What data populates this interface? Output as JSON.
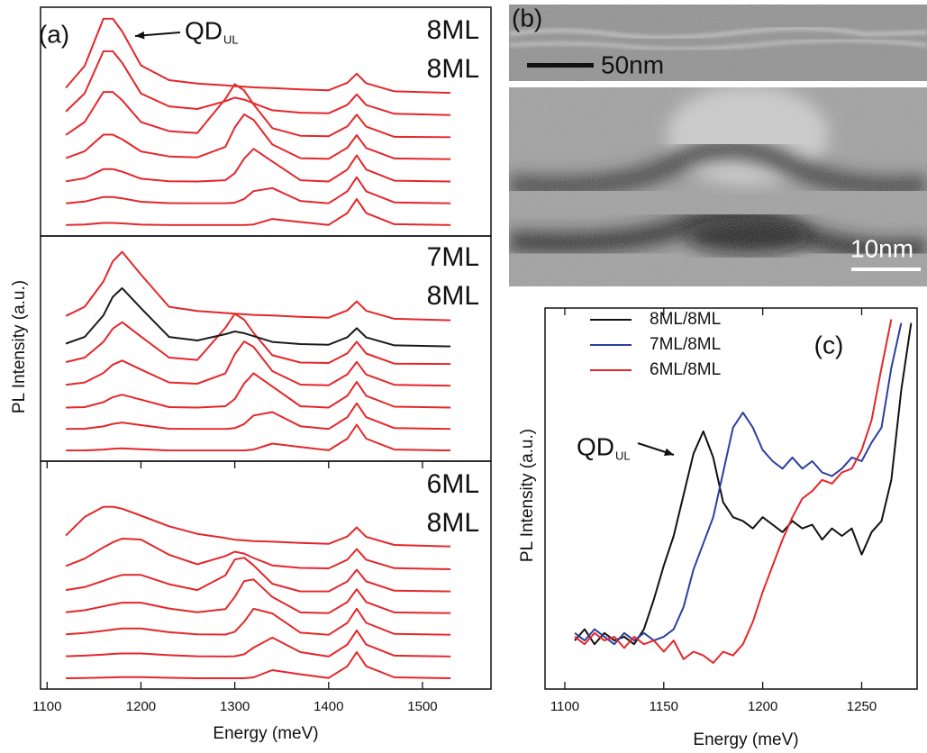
{
  "chart_data": [
    {
      "type": "line",
      "panel_label": "(a)",
      "labels": [
        "8ML",
        "8ML"
      ],
      "annotation": {
        "text": "QD",
        "subscript": "UL"
      },
      "xlim": [
        1093,
        1573
      ],
      "ylim": [
        0,
        10.5
      ],
      "x": [
        1120,
        1140,
        1160,
        1170,
        1180,
        1200,
        1230,
        1260,
        1290,
        1300,
        1310,
        1320,
        1340,
        1370,
        1400,
        1420,
        1430,
        1440,
        1470,
        1530
      ],
      "series": [
        {
          "color": "#e5262a",
          "values": [
            0.5,
            0.53,
            0.6,
            0.6,
            0.58,
            0.52,
            0.5,
            0.5,
            0.5,
            0.5,
            0.5,
            0.53,
            0.78,
            0.64,
            0.51,
            1.05,
            1.7,
            1.05,
            0.54,
            0.5
          ]
        },
        {
          "color": "#e5262a",
          "values": [
            1.5,
            1.58,
            1.79,
            1.79,
            1.73,
            1.57,
            1.51,
            1.5,
            1.5,
            1.53,
            1.7,
            2.06,
            2.2,
            1.61,
            1.5,
            2.05,
            2.7,
            2.05,
            1.54,
            1.5
          ]
        },
        {
          "color": "#e5262a",
          "values": [
            2.51,
            2.65,
            3.07,
            3.07,
            2.95,
            2.63,
            2.51,
            2.5,
            2.56,
            2.88,
            3.55,
            4.0,
            3.42,
            2.56,
            2.5,
            3.05,
            3.7,
            3.05,
            2.54,
            2.5
          ]
        },
        {
          "color": "#e5262a",
          "values": [
            3.57,
            3.89,
            4.65,
            4.65,
            4.44,
            3.88,
            3.65,
            3.61,
            4.09,
            4.98,
            5.58,
            5.33,
            4.2,
            3.57,
            3.54,
            4.05,
            4.63,
            4.04,
            3.56,
            3.52
          ]
        },
        {
          "color": "#e5262a",
          "values": [
            4.64,
            5.23,
            6.61,
            6.61,
            6.23,
            5.23,
            4.81,
            4.72,
            6.29,
            6.97,
            6.68,
            6.04,
            4.95,
            4.6,
            4.58,
            5.03,
            5.57,
            5.02,
            4.55,
            4.53
          ]
        },
        {
          "color": "#e5262a",
          "values": [
            5.71,
            6.55,
            8.48,
            8.48,
            7.95,
            6.54,
            5.95,
            5.83,
            6.19,
            6.35,
            6.26,
            6.09,
            5.77,
            5.66,
            5.63,
            6.02,
            6.5,
            6.01,
            5.61,
            5.55
          ]
        },
        {
          "color": "#e5262a",
          "values": [
            6.8,
            7.81,
            9.97,
            9.97,
            9.39,
            7.83,
            7.15,
            7.0,
            6.91,
            6.88,
            6.85,
            6.82,
            6.79,
            6.73,
            6.69,
            7.03,
            7.45,
            7.01,
            6.64,
            6.57
          ]
        }
      ]
    },
    {
      "type": "line",
      "labels": [
        "7ML",
        "8ML"
      ],
      "ylabel": "PL Intensity (a.u.)",
      "xlim": [
        1093,
        1573
      ],
      "ylim": [
        0,
        10.5
      ],
      "x": [
        1120,
        1140,
        1160,
        1170,
        1180,
        1200,
        1230,
        1260,
        1290,
        1300,
        1310,
        1320,
        1340,
        1370,
        1400,
        1420,
        1430,
        1440,
        1470,
        1530
      ],
      "series": [
        {
          "color": "#e5262a",
          "values": [
            0.5,
            0.5,
            0.54,
            0.58,
            0.6,
            0.56,
            0.5,
            0.5,
            0.5,
            0.5,
            0.5,
            0.54,
            0.82,
            0.66,
            0.51,
            1.05,
            1.7,
            1.05,
            0.54,
            0.5
          ]
        },
        {
          "color": "#e5262a",
          "values": [
            1.5,
            1.51,
            1.62,
            1.74,
            1.8,
            1.68,
            1.51,
            1.5,
            1.5,
            1.54,
            1.73,
            2.13,
            2.29,
            1.63,
            1.5,
            2.05,
            2.7,
            2.05,
            1.54,
            1.5
          ]
        },
        {
          "color": "#e5262a",
          "values": [
            2.5,
            2.52,
            2.75,
            2.98,
            3.1,
            2.87,
            2.52,
            2.5,
            2.56,
            2.9,
            3.62,
            4.1,
            3.48,
            2.56,
            2.5,
            3.05,
            3.7,
            3.05,
            2.54,
            2.5
          ]
        },
        {
          "color": "#e5262a",
          "values": [
            3.56,
            3.67,
            4.11,
            4.5,
            4.69,
            4.27,
            3.67,
            3.61,
            4.09,
            4.98,
            5.58,
            5.33,
            4.2,
            3.57,
            3.54,
            4.05,
            4.63,
            4.04,
            3.56,
            3.52
          ]
        },
        {
          "color": "#e5262a",
          "values": [
            4.62,
            4.83,
            5.56,
            6.18,
            6.48,
            5.81,
            4.83,
            4.72,
            6.22,
            6.87,
            6.6,
            5.98,
            4.94,
            4.6,
            4.58,
            5.03,
            5.57,
            5.02,
            4.55,
            4.53
          ]
        },
        {
          "color": "#1a1a1a",
          "values": [
            5.48,
            5.79,
            6.8,
            7.66,
            8.07,
            7.13,
            5.79,
            5.63,
            5.92,
            6.05,
            5.97,
            5.83,
            5.56,
            5.46,
            5.43,
            5.78,
            6.2,
            5.77,
            5.4,
            5.35
          ]
        },
        {
          "color": "#e5262a",
          "values": [
            6.77,
            7.2,
            8.38,
            9.32,
            9.76,
            8.7,
            7.2,
            7.0,
            6.91,
            6.88,
            6.85,
            6.82,
            6.79,
            6.73,
            6.69,
            7.03,
            7.45,
            7.01,
            6.64,
            6.57
          ]
        }
      ]
    },
    {
      "type": "line",
      "labels": [
        "6ML",
        "8ML"
      ],
      "xlabel": "Energy (meV)",
      "xlim": [
        1093,
        1573
      ],
      "ylim": [
        0,
        10.5
      ],
      "xticks": [
        1100,
        1200,
        1300,
        1400,
        1500
      ],
      "x": [
        1120,
        1140,
        1160,
        1170,
        1180,
        1200,
        1230,
        1260,
        1290,
        1300,
        1310,
        1320,
        1340,
        1370,
        1400,
        1420,
        1430,
        1440,
        1470,
        1530
      ],
      "series": [
        {
          "color": "#e5262a",
          "values": [
            0.5,
            0.51,
            0.53,
            0.54,
            0.55,
            0.55,
            0.52,
            0.5,
            0.5,
            0.5,
            0.5,
            0.54,
            0.87,
            0.68,
            0.51,
            1.05,
            1.7,
            1.05,
            0.54,
            0.5
          ]
        },
        {
          "color": "#e5262a",
          "values": [
            1.51,
            1.54,
            1.59,
            1.62,
            1.64,
            1.64,
            1.56,
            1.51,
            1.5,
            1.51,
            1.6,
            1.91,
            2.37,
            1.7,
            1.5,
            2.05,
            2.7,
            2.05,
            1.54,
            1.5
          ]
        },
        {
          "color": "#e5262a",
          "values": [
            2.52,
            2.58,
            2.68,
            2.74,
            2.79,
            2.79,
            2.62,
            2.52,
            2.51,
            2.64,
            3.1,
            3.7,
            3.48,
            2.6,
            2.5,
            3.05,
            3.7,
            3.05,
            2.54,
            2.5
          ]
        },
        {
          "color": "#e5262a",
          "values": [
            3.54,
            3.63,
            3.81,
            3.9,
            3.98,
            3.98,
            3.71,
            3.54,
            3.68,
            4.24,
            4.97,
            5.05,
            4.24,
            3.53,
            3.5,
            4.01,
            4.6,
            4.01,
            3.53,
            3.5
          ]
        },
        {
          "color": "#e5262a",
          "values": [
            4.56,
            4.7,
            4.99,
            5.14,
            5.26,
            5.26,
            4.83,
            4.56,
            5.24,
            5.97,
            6.05,
            5.7,
            4.85,
            4.5,
            4.5,
            4.96,
            5.5,
            4.96,
            4.53,
            4.5
          ]
        },
        {
          "color": "#e5262a",
          "values": [
            5.67,
            6.01,
            6.53,
            6.76,
            6.93,
            6.89,
            6.19,
            5.75,
            6.13,
            6.33,
            6.24,
            6.04,
            5.7,
            5.58,
            5.56,
            5.96,
            6.45,
            5.96,
            5.57,
            5.52
          ]
        },
        {
          "color": "#e5262a",
          "values": [
            7.07,
            7.93,
            8.4,
            8.4,
            8.31,
            7.99,
            7.5,
            7.15,
            6.96,
            6.88,
            6.85,
            6.82,
            6.79,
            6.73,
            6.69,
            7.03,
            7.45,
            7.01,
            6.64,
            6.57
          ]
        }
      ]
    },
    {
      "type": "line",
      "panel_label": "(c)",
      "xlabel": "Energy (meV)",
      "ylabel": "PL Intensity (a.u.)",
      "annotation": {
        "text": "QD",
        "subscript": "UL"
      },
      "legend": "upper left",
      "xlim": [
        1090,
        1278
      ],
      "ylim": [
        0,
        10.2
      ],
      "xticks": [
        1100,
        1150,
        1200,
        1250
      ],
      "x": [
        1105,
        1110,
        1115,
        1120,
        1125,
        1130,
        1135,
        1140,
        1145,
        1150,
        1155,
        1160,
        1165,
        1170,
        1175,
        1180,
        1185,
        1190,
        1195,
        1200,
        1205,
        1210,
        1215,
        1220,
        1225,
        1230,
        1235,
        1240,
        1245,
        1250,
        1255,
        1260,
        1265,
        1270,
        1275
      ],
      "series": [
        {
          "name": "8ML/8ML",
          "color": "#111111",
          "values": [
            1.3,
            1.6,
            1.2,
            1.5,
            1.3,
            1.4,
            1.2,
            1.6,
            2.4,
            3.3,
            4.1,
            5.2,
            6.3,
            6.9,
            6.2,
            5.0,
            4.6,
            4.5,
            4.3,
            4.6,
            4.4,
            4.2,
            4.5,
            4.3,
            4.4,
            4.0,
            4.3,
            4.1,
            4.3,
            3.6,
            4.2,
            4.5,
            5.6,
            8.0,
            9.8
          ]
        },
        {
          "name": "7ML/8ML",
          "color": "#2b3f9e",
          "values": [
            1.5,
            1.3,
            1.6,
            1.4,
            1.2,
            1.5,
            1.3,
            1.5,
            1.3,
            1.4,
            1.6,
            2.2,
            3.2,
            3.9,
            4.6,
            5.8,
            7.0,
            7.4,
            7.0,
            6.4,
            6.1,
            5.9,
            6.2,
            5.9,
            6.1,
            5.8,
            5.7,
            5.9,
            6.2,
            6.1,
            6.6,
            7.0,
            8.6,
            9.8,
            null
          ]
        },
        {
          "name": "6ML/8ML",
          "color": "#e5262a",
          "values": [
            1.4,
            1.2,
            1.5,
            1.3,
            1.4,
            1.1,
            1.4,
            1.2,
            1.3,
            1.0,
            1.3,
            0.8,
            1.0,
            0.9,
            0.7,
            1.0,
            0.9,
            1.2,
            1.8,
            2.6,
            3.3,
            4.0,
            4.6,
            5.1,
            5.3,
            5.6,
            5.5,
            5.8,
            5.9,
            6.4,
            7.2,
            8.6,
            9.9,
            null,
            null
          ]
        }
      ]
    }
  ],
  "image_panel": {
    "label": "(b)",
    "scale_top": "50nm",
    "scale_bottom": "10nm"
  }
}
